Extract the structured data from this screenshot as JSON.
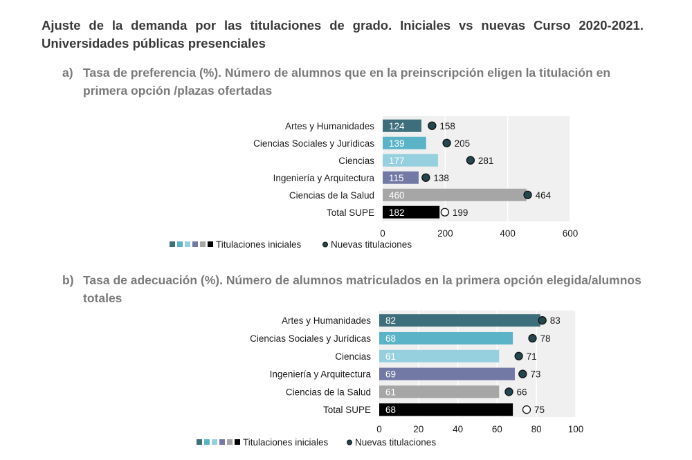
{
  "title": "Ajuste de la demanda por las titulaciones de grado. Iniciales vs nuevas Curso 2020-2021. Universidades públicas presenciales",
  "colors": {
    "bars": [
      "#3d6e7b",
      "#5ab3c7",
      "#96d0df",
      "#7379a5",
      "#a6a6a6",
      "#000000"
    ],
    "dot_fill": "#24464f",
    "dot_total_fill": "#ffffff",
    "plot_bg": "#f0f0f0"
  },
  "chart_data": [
    {
      "type": "bar",
      "orientation": "horizontal",
      "letter": "a)",
      "title": "Tasa de preferencia (%). Número de alumnos que en la preinscripción eligen la titulación en primera opción /plazas ofertadas",
      "categories": [
        "Artes y Humanidades",
        "Ciencias Sociales y Jurídicas",
        "Ciencias",
        "Ingeniería y Arquitectura",
        "Ciencias de la Salud",
        "Total SUPE"
      ],
      "series": [
        {
          "name": "Titulaciones iniciales",
          "values": [
            124,
            139,
            177,
            115,
            460,
            182
          ]
        },
        {
          "name": "Nuevas titulaciones",
          "values": [
            158,
            205,
            281,
            138,
            464,
            199
          ]
        }
      ],
      "xlim": [
        0,
        600
      ],
      "xticks": [
        0,
        200,
        400,
        600
      ],
      "grid": true,
      "legend_placement": "bottom"
    },
    {
      "type": "bar",
      "orientation": "horizontal",
      "letter": "b)",
      "title": "Tasa de adecuación (%). Número de alumnos matriculados en la primera opción elegida/alumnos totales",
      "categories": [
        "Artes y Humanidades",
        "Ciencias Sociales y Jurídicas",
        "Ciencias",
        "Ingeniería y Arquitectura",
        "Ciencias de la Salud",
        "Total SUPE"
      ],
      "series": [
        {
          "name": "Titulaciones iniciales",
          "values": [
            82,
            68,
            61,
            69,
            61,
            68
          ]
        },
        {
          "name": "Nuevas titulaciones",
          "values": [
            83,
            78,
            71,
            73,
            66,
            75
          ]
        }
      ],
      "xlim": [
        0,
        100
      ],
      "xticks": [
        0,
        20,
        40,
        60,
        80,
        100
      ],
      "grid": true,
      "legend_placement": "bottom"
    }
  ]
}
